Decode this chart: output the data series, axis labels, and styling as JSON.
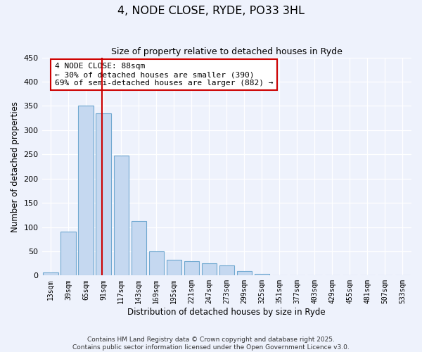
{
  "title": "4, NODE CLOSE, RYDE, PO33 3HL",
  "subtitle": "Size of property relative to detached houses in Ryde",
  "xlabel": "Distribution of detached houses by size in Ryde",
  "ylabel": "Number of detached properties",
  "bar_labels": [
    "13sqm",
    "39sqm",
    "65sqm",
    "91sqm",
    "117sqm",
    "143sqm",
    "169sqm",
    "195sqm",
    "221sqm",
    "247sqm",
    "273sqm",
    "299sqm",
    "325sqm",
    "351sqm",
    "377sqm",
    "403sqm",
    "429sqm",
    "455sqm",
    "481sqm",
    "507sqm",
    "533sqm"
  ],
  "bar_values": [
    6,
    90,
    350,
    335,
    247,
    113,
    50,
    32,
    30,
    25,
    21,
    9,
    4,
    0,
    1,
    0,
    0,
    0,
    0,
    0,
    0
  ],
  "bar_color": "#c5d8f0",
  "bar_edge_color": "#6fa8d0",
  "vline_index": 2.93,
  "annotation_title": "4 NODE CLOSE: 88sqm",
  "annotation_line1": "← 30% of detached houses are smaller (390)",
  "annotation_line2": "69% of semi-detached houses are larger (882) →",
  "annotation_box_facecolor": "#ffffff",
  "annotation_box_edgecolor": "#cc0000",
  "vline_color": "#cc0000",
  "ylim": [
    0,
    450
  ],
  "yticks": [
    0,
    50,
    100,
    150,
    200,
    250,
    300,
    350,
    400,
    450
  ],
  "background_color": "#eef2fc",
  "grid_color": "#ffffff",
  "footer_line1": "Contains HM Land Registry data © Crown copyright and database right 2025.",
  "footer_line2": "Contains public sector information licensed under the Open Government Licence v3.0."
}
